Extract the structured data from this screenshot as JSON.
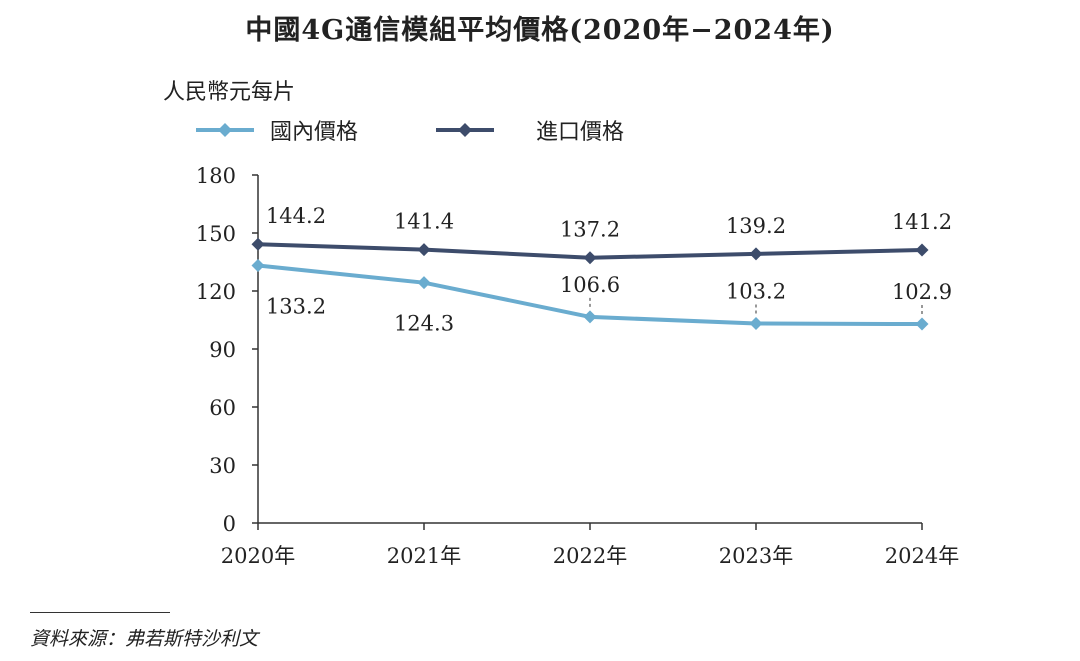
{
  "title": "中國4G通信模組平均價格(2020年−2024年)",
  "source": "資料來源：弗若斯特沙利文",
  "colors": {
    "domestic": "#6aaccf",
    "import": "#3d4c6b",
    "axis": "#333333"
  },
  "chart_data": {
    "type": "line",
    "title": "中國4G通信模組平均價格(2020年−2024年)",
    "ylabel": "人民幣元每片",
    "xlabel": "",
    "categories": [
      "2020年",
      "2021年",
      "2022年",
      "2023年",
      "2024年"
    ],
    "ylim": [
      0,
      180
    ],
    "yticks": [
      0,
      30,
      60,
      90,
      120,
      150,
      180
    ],
    "grid": false,
    "legend_position": "top-left",
    "series": [
      {
        "name": "國內價格",
        "values": [
          133.2,
          124.3,
          106.6,
          103.2,
          102.9
        ]
      },
      {
        "name": "進口價格",
        "values": [
          144.2,
          141.4,
          137.2,
          139.2,
          141.2
        ]
      }
    ]
  }
}
